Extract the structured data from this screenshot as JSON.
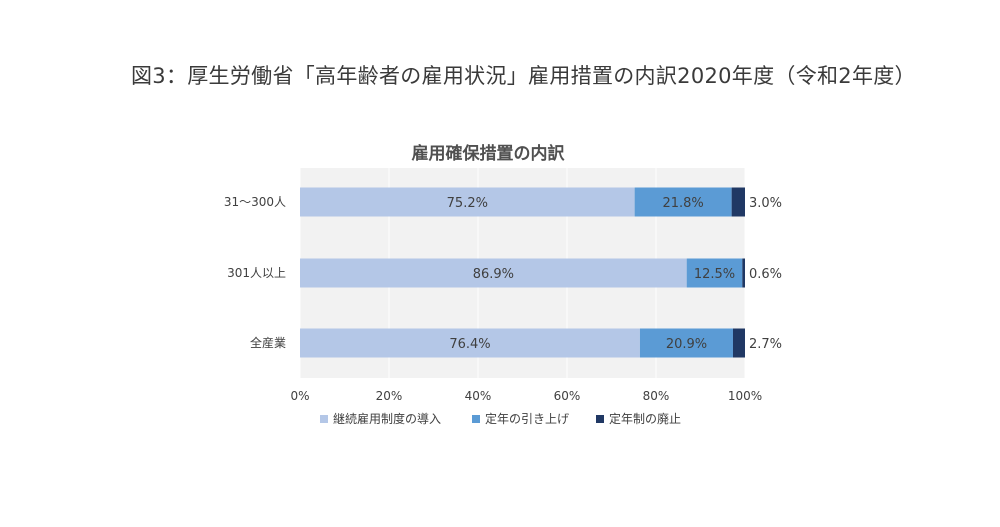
{
  "page": {
    "title": "図3：厚生労働省「高年齢者の雇用状況」雇用措置の内訳2020年度（令和2年度）"
  },
  "chart_data": {
    "type": "bar",
    "orientation": "horizontal",
    "stacked": true,
    "title": "雇用確保措置の内訳",
    "categories": [
      "31～300人",
      "301人以上",
      "全産業"
    ],
    "series": [
      {
        "name": "継続雇用制度の導入",
        "values": [
          75.2,
          86.9,
          76.4
        ],
        "labels": [
          "75.2%",
          "86.9%",
          "76.4%"
        ],
        "color": "#b4c7e7"
      },
      {
        "name": "定年の引き上げ",
        "values": [
          21.8,
          12.5,
          20.9
        ],
        "labels": [
          "21.8%",
          "12.5%",
          "20.9%"
        ],
        "color": "#5b9bd5"
      },
      {
        "name": "定年制の廃止",
        "values": [
          3.0,
          0.6,
          2.7
        ],
        "labels": [
          "3.0%",
          "0.6%",
          "2.7%"
        ],
        "color": "#203864"
      }
    ],
    "xlim": [
      0,
      100
    ],
    "ticks": [
      "0%",
      "20%",
      "40%",
      "60%",
      "80%",
      "100%"
    ],
    "tick_values": [
      0,
      20,
      40,
      60,
      80,
      100
    ],
    "grid": true,
    "legend": "bottom",
    "plot_background": "#f2f2f2"
  }
}
